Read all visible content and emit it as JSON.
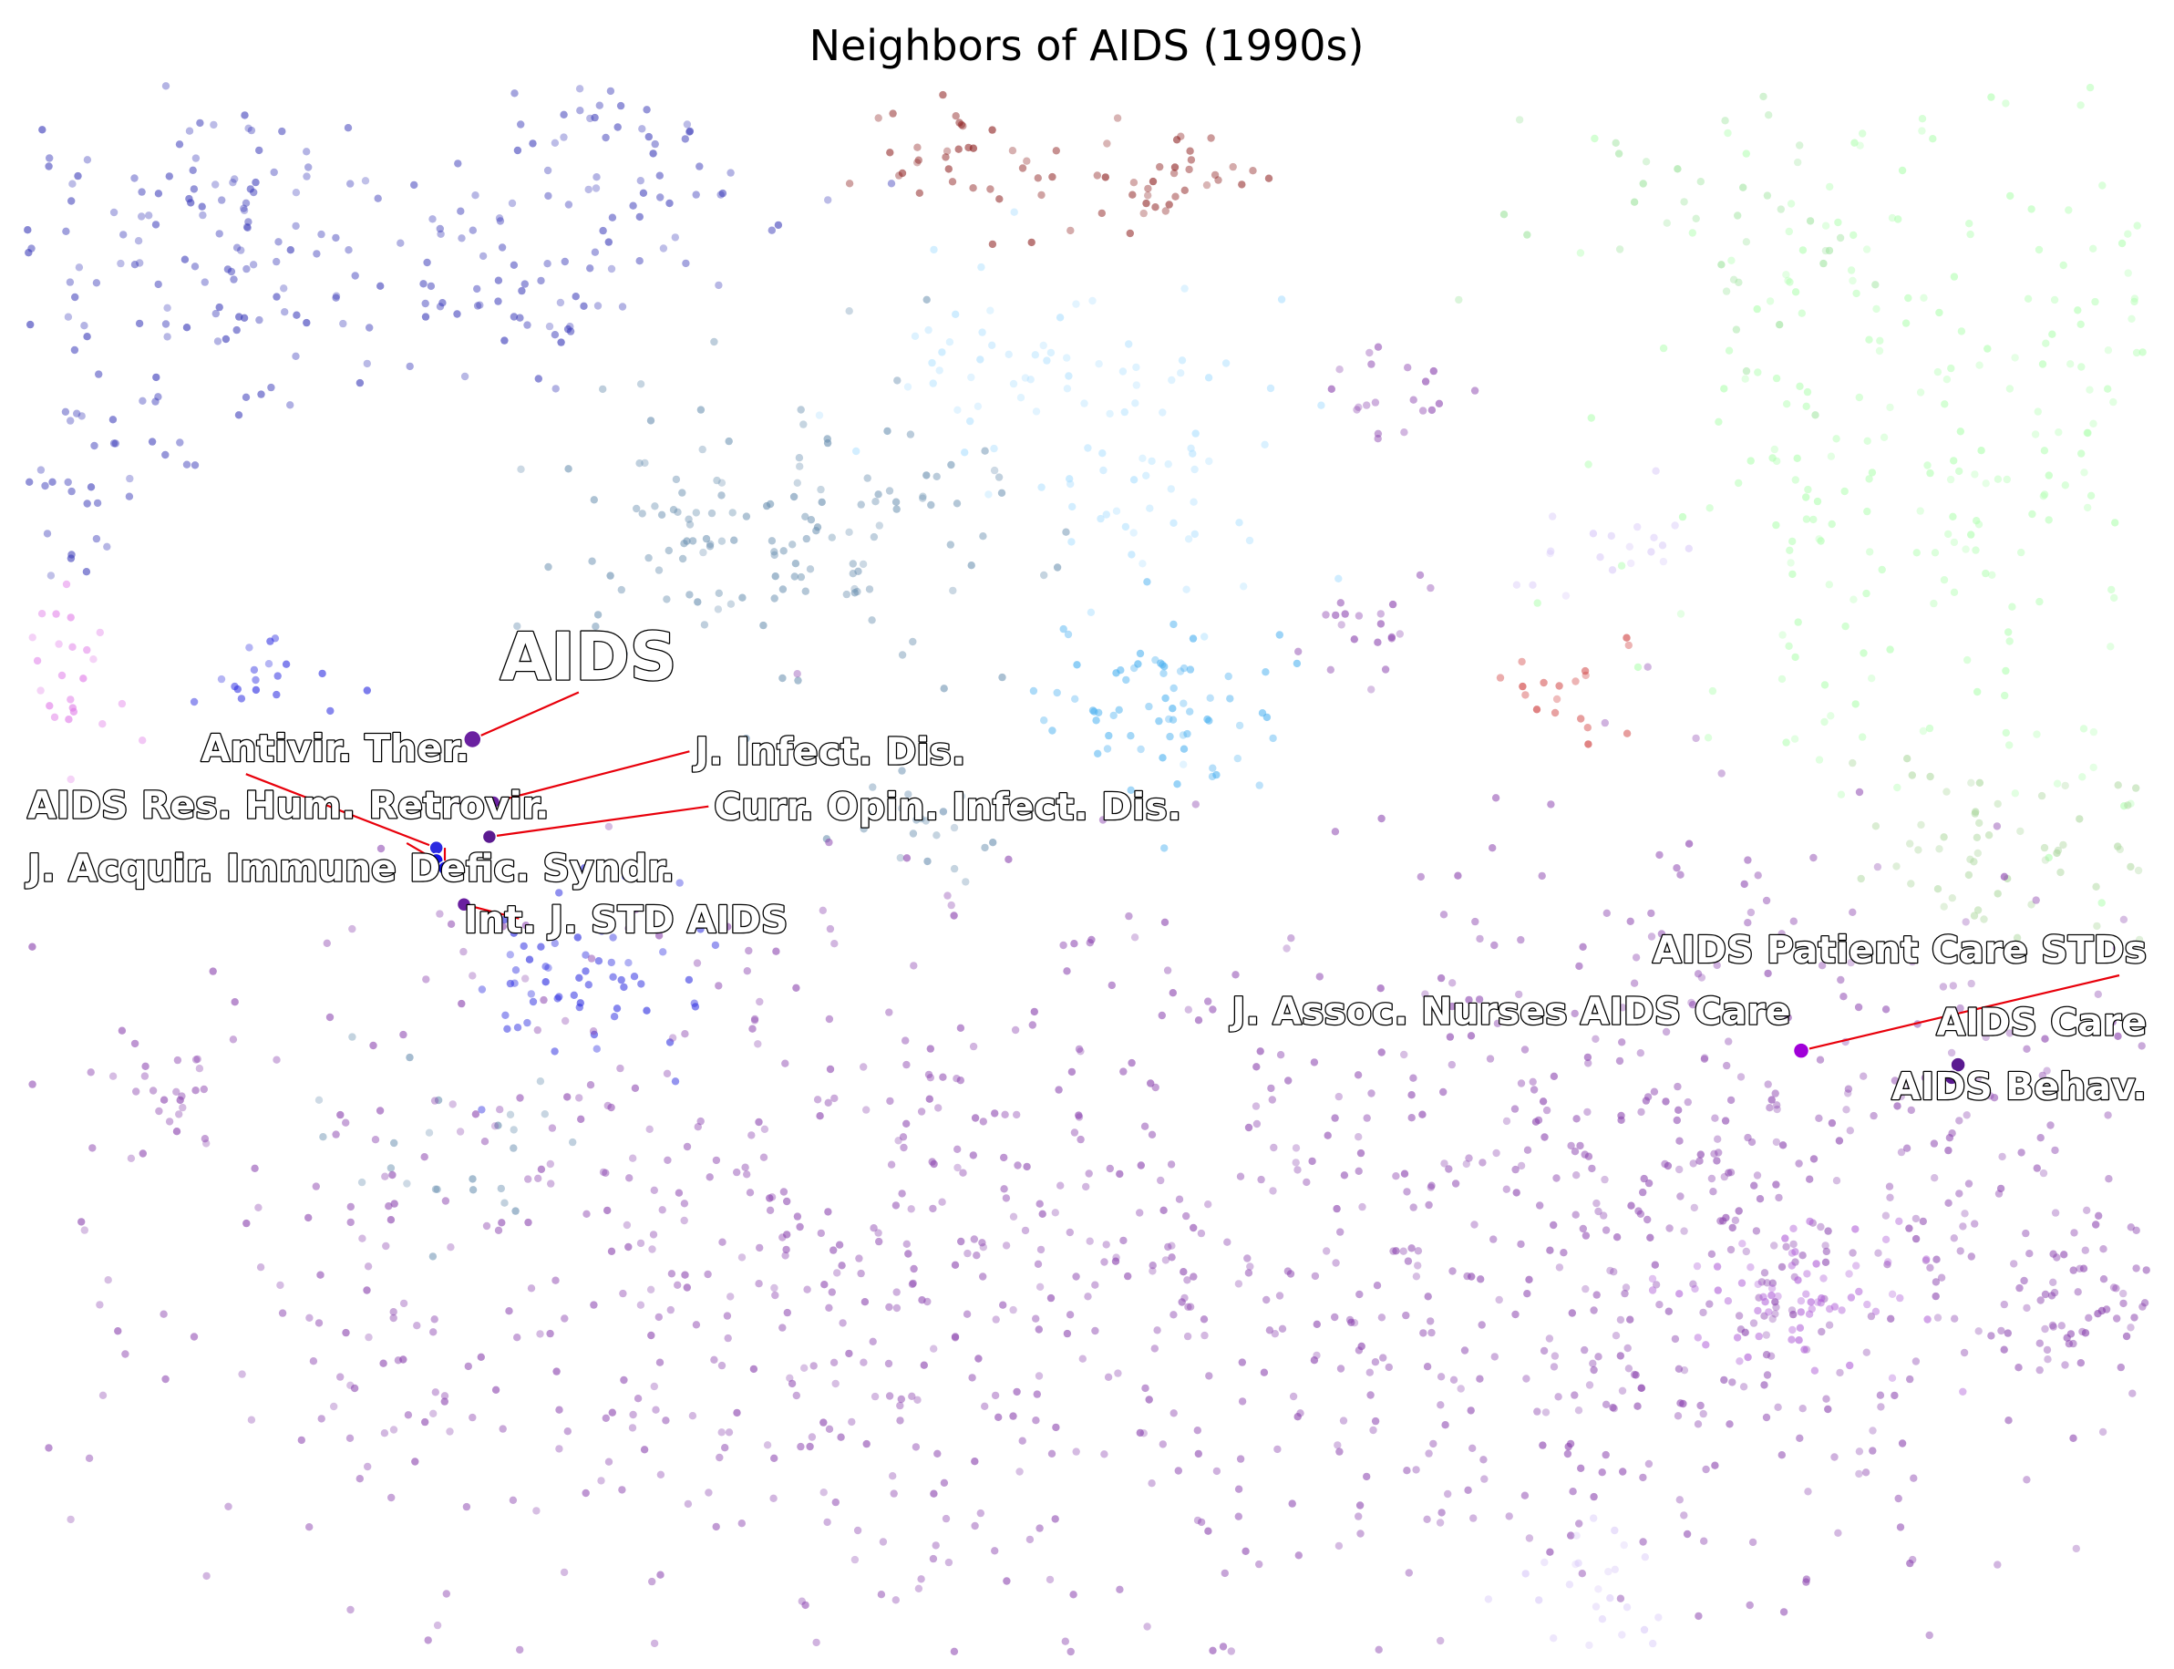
{
  "chart_data": {
    "type": "scatter",
    "title": "Neighbors of AIDS (1990s)",
    "xlabel": "",
    "ylabel": "",
    "axes_visible": false,
    "grid": false,
    "xlim": [
      0,
      100
    ],
    "ylim": [
      0,
      100
    ],
    "y_orientation": "top-to-bottom",
    "colors": {
      "highlight_line": "#e8000b",
      "purple": "#7b2fa0",
      "blue": "#2222dd",
      "steel": "#4a6f9a",
      "sky": "#7ec8ff",
      "light_green": "#88ee88",
      "dark_red": "#9a1a1a",
      "magenta": "#d040e0"
    },
    "background_clusters": [
      {
        "color": "#3a3ab8",
        "x": 8,
        "y": 10,
        "sx": 6,
        "sy": 6,
        "n": 170,
        "seed": 11
      },
      {
        "color": "#3a3ab8",
        "x": 28,
        "y": 5,
        "sx": 4,
        "sy": 3,
        "n": 55,
        "seed": 12
      },
      {
        "color": "#3a3ab8",
        "x": 24,
        "y": 13,
        "sx": 3,
        "sy": 2.5,
        "n": 45,
        "seed": 13
      },
      {
        "color": "#3a3ab8",
        "x": 3,
        "y": 27,
        "sx": 2,
        "sy": 3,
        "n": 25,
        "seed": 14
      },
      {
        "color": "#2a2ae0",
        "x": 11,
        "y": 38,
        "sx": 2,
        "sy": 1.5,
        "n": 18,
        "seed": 15
      },
      {
        "color": "#2a2ae0",
        "x": 26,
        "y": 57,
        "sx": 3,
        "sy": 3,
        "n": 60,
        "seed": 16
      },
      {
        "color": "#6a90b0",
        "x": 36,
        "y": 29,
        "sx": 6,
        "sy": 5,
        "n": 140,
        "seed": 17
      },
      {
        "color": "#6a90b0",
        "x": 42,
        "y": 47,
        "sx": 2,
        "sy": 2,
        "n": 22,
        "seed": 18
      },
      {
        "color": "#6a90b0",
        "x": 20,
        "y": 68,
        "sx": 3,
        "sy": 3,
        "n": 25,
        "seed": 19
      },
      {
        "color": "#8a1a1a",
        "x": 45,
        "y": 5,
        "sx": 3,
        "sy": 2,
        "n": 40,
        "seed": 20
      },
      {
        "color": "#8a1a1a",
        "x": 54,
        "y": 6,
        "sx": 2,
        "sy": 2,
        "n": 30,
        "seed": 21
      },
      {
        "color": "#cc3030",
        "x": 72,
        "y": 38,
        "sx": 1.5,
        "sy": 2,
        "n": 18,
        "seed": 22
      },
      {
        "color": "#aee0ff",
        "x": 45,
        "y": 18,
        "sx": 4,
        "sy": 3,
        "n": 40,
        "seed": 23
      },
      {
        "color": "#aee0ff",
        "x": 53,
        "y": 25,
        "sx": 3,
        "sy": 6,
        "n": 60,
        "seed": 24
      },
      {
        "color": "#4ab0f0",
        "x": 53,
        "y": 40,
        "sx": 3,
        "sy": 3,
        "n": 70,
        "seed": 25
      },
      {
        "color": "#b0ffb0",
        "x": 90,
        "y": 22,
        "sx": 7,
        "sy": 12,
        "n": 260,
        "seed": 26
      },
      {
        "color": "#9ae29a",
        "x": 80,
        "y": 8,
        "sx": 5,
        "sy": 4,
        "n": 40,
        "seed": 27
      },
      {
        "color": "#aed8a0",
        "x": 94,
        "y": 49,
        "sx": 4,
        "sy": 3,
        "n": 60,
        "seed": 28
      },
      {
        "color": "#e07be8",
        "x": 2,
        "y": 37,
        "sx": 1.5,
        "sy": 3,
        "n": 25,
        "seed": 29
      },
      {
        "color": "#8a42ae",
        "x": 64,
        "y": 21,
        "sx": 2,
        "sy": 2,
        "n": 20,
        "seed": 30
      },
      {
        "color": "#8a42ae",
        "x": 64,
        "y": 35,
        "sx": 2,
        "sy": 2,
        "n": 20,
        "seed": 31
      },
      {
        "color": "#d8c8f8",
        "x": 75,
        "y": 29,
        "sx": 2,
        "sy": 1.5,
        "n": 20,
        "seed": 32
      },
      {
        "color": "#8a42ae",
        "x": 45,
        "y": 76,
        "sx": 22,
        "sy": 12,
        "n": 900,
        "seed": 33
      },
      {
        "color": "#8a42ae",
        "x": 82,
        "y": 70,
        "sx": 10,
        "sy": 12,
        "n": 380,
        "seed": 34
      },
      {
        "color": "#b060d8",
        "x": 84,
        "y": 77,
        "sx": 3,
        "sy": 2.5,
        "n": 70,
        "seed": 35
      },
      {
        "color": "#8a42ae",
        "x": 97,
        "y": 77,
        "sx": 2,
        "sy": 3,
        "n": 60,
        "seed": 36
      },
      {
        "color": "#8a42ae",
        "x": 7,
        "y": 65,
        "sx": 1.5,
        "sy": 1.5,
        "n": 25,
        "seed": 37
      },
      {
        "color": "#d8c8f8",
        "x": 74,
        "y": 96,
        "sx": 2,
        "sy": 2,
        "n": 25,
        "seed": 38
      }
    ],
    "points": [
      {
        "name": "AIDS",
        "x": 21.0,
        "y": 41.8,
        "color": "#6a20a0",
        "size": 17,
        "label_x": 22.3,
        "label_y": 38.0,
        "label_size": 72,
        "anchor": "start"
      },
      {
        "name": "Antivir. Ther.",
        "x": 19.3,
        "y": 48.7,
        "color": "#2a2ae0",
        "size": 13,
        "label_x": 8.2,
        "label_y": 43.2,
        "label_size": 41,
        "anchor": "start"
      },
      {
        "name": "J. Infect. Dis.",
        "x": 22.0,
        "y": 45.8,
        "color": "#6a20a0",
        "size": 12,
        "label_x": 31.5,
        "label_y": 43.4,
        "label_size": 41,
        "anchor": "start"
      },
      {
        "name": "AIDS Res. Hum. Retrovir.",
        "x": 19.3,
        "y": 49.5,
        "color": "#1212e8",
        "size": 13,
        "label_x": 0.0,
        "label_y": 46.8,
        "label_size": 41,
        "anchor": "start"
      },
      {
        "name": "Curr. Opin. Infect. Dis.",
        "x": 21.8,
        "y": 48.0,
        "color": "#5a1a90",
        "size": 13,
        "label_x": 32.4,
        "label_y": 46.9,
        "label_size": 41,
        "anchor": "start"
      },
      {
        "name": "J. Acquir. Immune Defic. Syndr.",
        "x": 19.7,
        "y": 50.0,
        "color": "#1212e8",
        "size": 13,
        "label_x": 0.0,
        "label_y": 50.8,
        "label_size": 41,
        "anchor": "start"
      },
      {
        "name": "Int. J. STD AIDS",
        "x": 20.6,
        "y": 52.3,
        "color": "#6a20a0",
        "size": 13,
        "label_x": 20.6,
        "label_y": 54.1,
        "label_size": 41,
        "anchor": "start"
      },
      {
        "name": "AIDS Patient Care STDs",
        "x": 83.7,
        "y": 61.6,
        "color": "#a000d8",
        "size": 15,
        "label_x": 100.0,
        "label_y": 56.0,
        "label_size": 41,
        "anchor": "end"
      },
      {
        "name": "J. Assoc. Nurses AIDS Care",
        "x": 83.7,
        "y": 61.6,
        "color": "#a000d8",
        "size": 0,
        "label_x": 83.2,
        "label_y": 59.9,
        "label_size": 41,
        "anchor": "end"
      },
      {
        "name": "AIDS Care",
        "x": 91.1,
        "y": 62.5,
        "color": "#5a1a90",
        "size": 14,
        "label_x": 100.0,
        "label_y": 60.6,
        "label_size": 41,
        "anchor": "end"
      },
      {
        "name": "AIDS Behav.",
        "x": 90.8,
        "y": 63.3,
        "color": "#5a1a90",
        "size": 14,
        "label_x": 100.0,
        "label_y": 64.7,
        "label_size": 41,
        "anchor": "end"
      }
    ]
  }
}
